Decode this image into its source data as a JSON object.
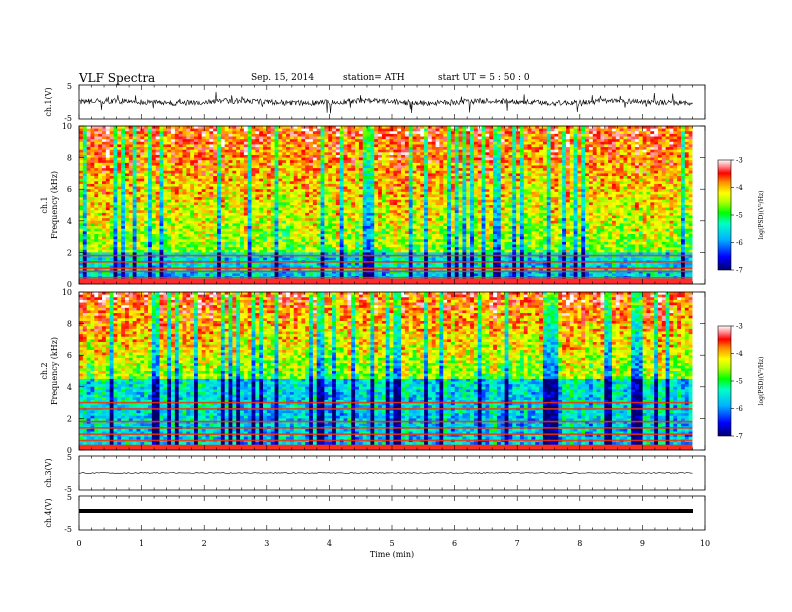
{
  "header": {
    "title": "VLF  Spectra",
    "date": "Sep. 15, 2014",
    "station": "station= ATH",
    "start": "start  UT  =   5  : 50 : 0"
  },
  "chart_data": [
    {
      "type": "line",
      "id": "ch1-waveform",
      "ylabel": "ch.1(V)",
      "ylim": [
        -5,
        5
      ],
      "yticks": [
        "5",
        "-5"
      ],
      "x_range_min": [
        0,
        9.8
      ],
      "description_series": "noisy waveform centred near 0 V with spikes to about ±3 V"
    },
    {
      "type": "heatmap",
      "id": "ch1-spectrogram",
      "ylabel": "Frequency  (kHz)",
      "channel_label": "ch.1",
      "ylim_khz": [
        0,
        10
      ],
      "yticks": [
        "0",
        "2",
        "4",
        "6",
        "8",
        "10"
      ],
      "colorbar": {
        "label": "log(PSD)(V²/Hz)",
        "range": [
          -7,
          -3
        ],
        "ticks": [
          "-3",
          "-4",
          "-5",
          "-6",
          "-7"
        ],
        "colors": [
          "#00007a",
          "#0000ff",
          "#00aaff",
          "#00ffcc",
          "#00ff00",
          "#aaff00",
          "#ffff00",
          "#ff8800",
          "#ff0000",
          "#ff9999",
          "#ffffff"
        ]
      },
      "broadband_noise_band_khz": [
        0,
        2
      ],
      "hum_lines_khz": [
        0.4,
        0.8,
        1.0,
        1.4,
        1.8
      ]
    },
    {
      "type": "heatmap",
      "id": "ch2-spectrogram",
      "ylabel": "Frequency  (kHz)",
      "channel_label": "ch.2",
      "ylim_khz": [
        0,
        10
      ],
      "yticks": [
        "0",
        "2",
        "4",
        "6",
        "8",
        "10"
      ],
      "colorbar": {
        "label": "log(PSD)(V²/Hz)",
        "range": [
          -7,
          -3
        ],
        "ticks": [
          "-3",
          "-4",
          "-5",
          "-6",
          "-7"
        ]
      },
      "broadband_noise_band_khz": [
        0,
        4.5
      ],
      "hum_lines_khz": [
        0.2,
        0.6,
        1.0,
        1.4,
        1.8,
        2.6,
        3.0
      ]
    },
    {
      "type": "line",
      "id": "ch3-waveform",
      "ylabel": "ch.3(V)",
      "ylim": [
        -5,
        5
      ],
      "yticks": [
        "5",
        "-5"
      ],
      "level_v": 0
    },
    {
      "type": "line",
      "id": "ch4-waveform",
      "ylabel": "ch.4(V)",
      "ylim": [
        -5,
        5
      ],
      "yticks": [
        "5",
        "-5"
      ],
      "level_v": 0
    }
  ],
  "xaxis": {
    "label": "Time  (min)",
    "range": [
      0,
      10
    ],
    "ticks": [
      "0",
      "1",
      "2",
      "3",
      "4",
      "5",
      "6",
      "7",
      "8",
      "9",
      "10"
    ]
  },
  "colors": {
    "axis": "#000000",
    "waveform": "#000000"
  }
}
